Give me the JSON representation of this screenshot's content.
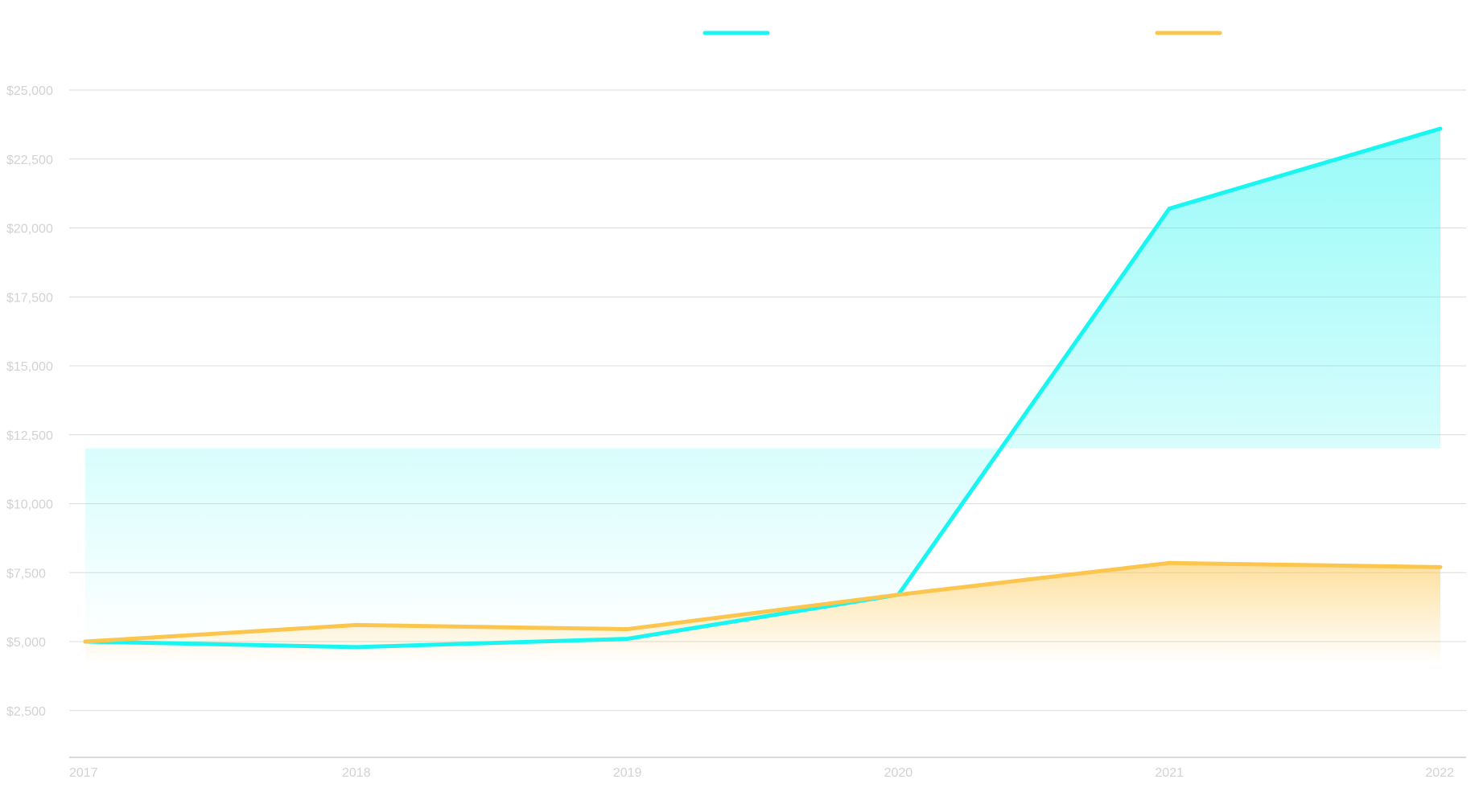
{
  "chart_data": {
    "type": "area",
    "categories": [
      "2017",
      "2018",
      "2019",
      "2020",
      "2021",
      "2022"
    ],
    "series": [
      {
        "color": "#19f5f0",
        "values": [
          5000,
          4800,
          5100,
          6700,
          20700,
          23600
        ]
      },
      {
        "color": "#fcc64e",
        "values": [
          5000,
          5600,
          5450,
          6700,
          7850,
          7700
        ]
      }
    ],
    "yticks": [
      2500,
      5000,
      7500,
      10000,
      12500,
      15000,
      17500,
      20000,
      22500,
      25000
    ],
    "ytick_labels": [
      "$2,500",
      "$5,000",
      "$7,500",
      "$10,000",
      "$12,500",
      "$15,000",
      "$17,500",
      "$20,000",
      "$22,500",
      "$25,000"
    ],
    "ylim": [
      0,
      25000
    ],
    "grid": true,
    "legend": "top",
    "xlabel": "",
    "ylabel": ""
  }
}
